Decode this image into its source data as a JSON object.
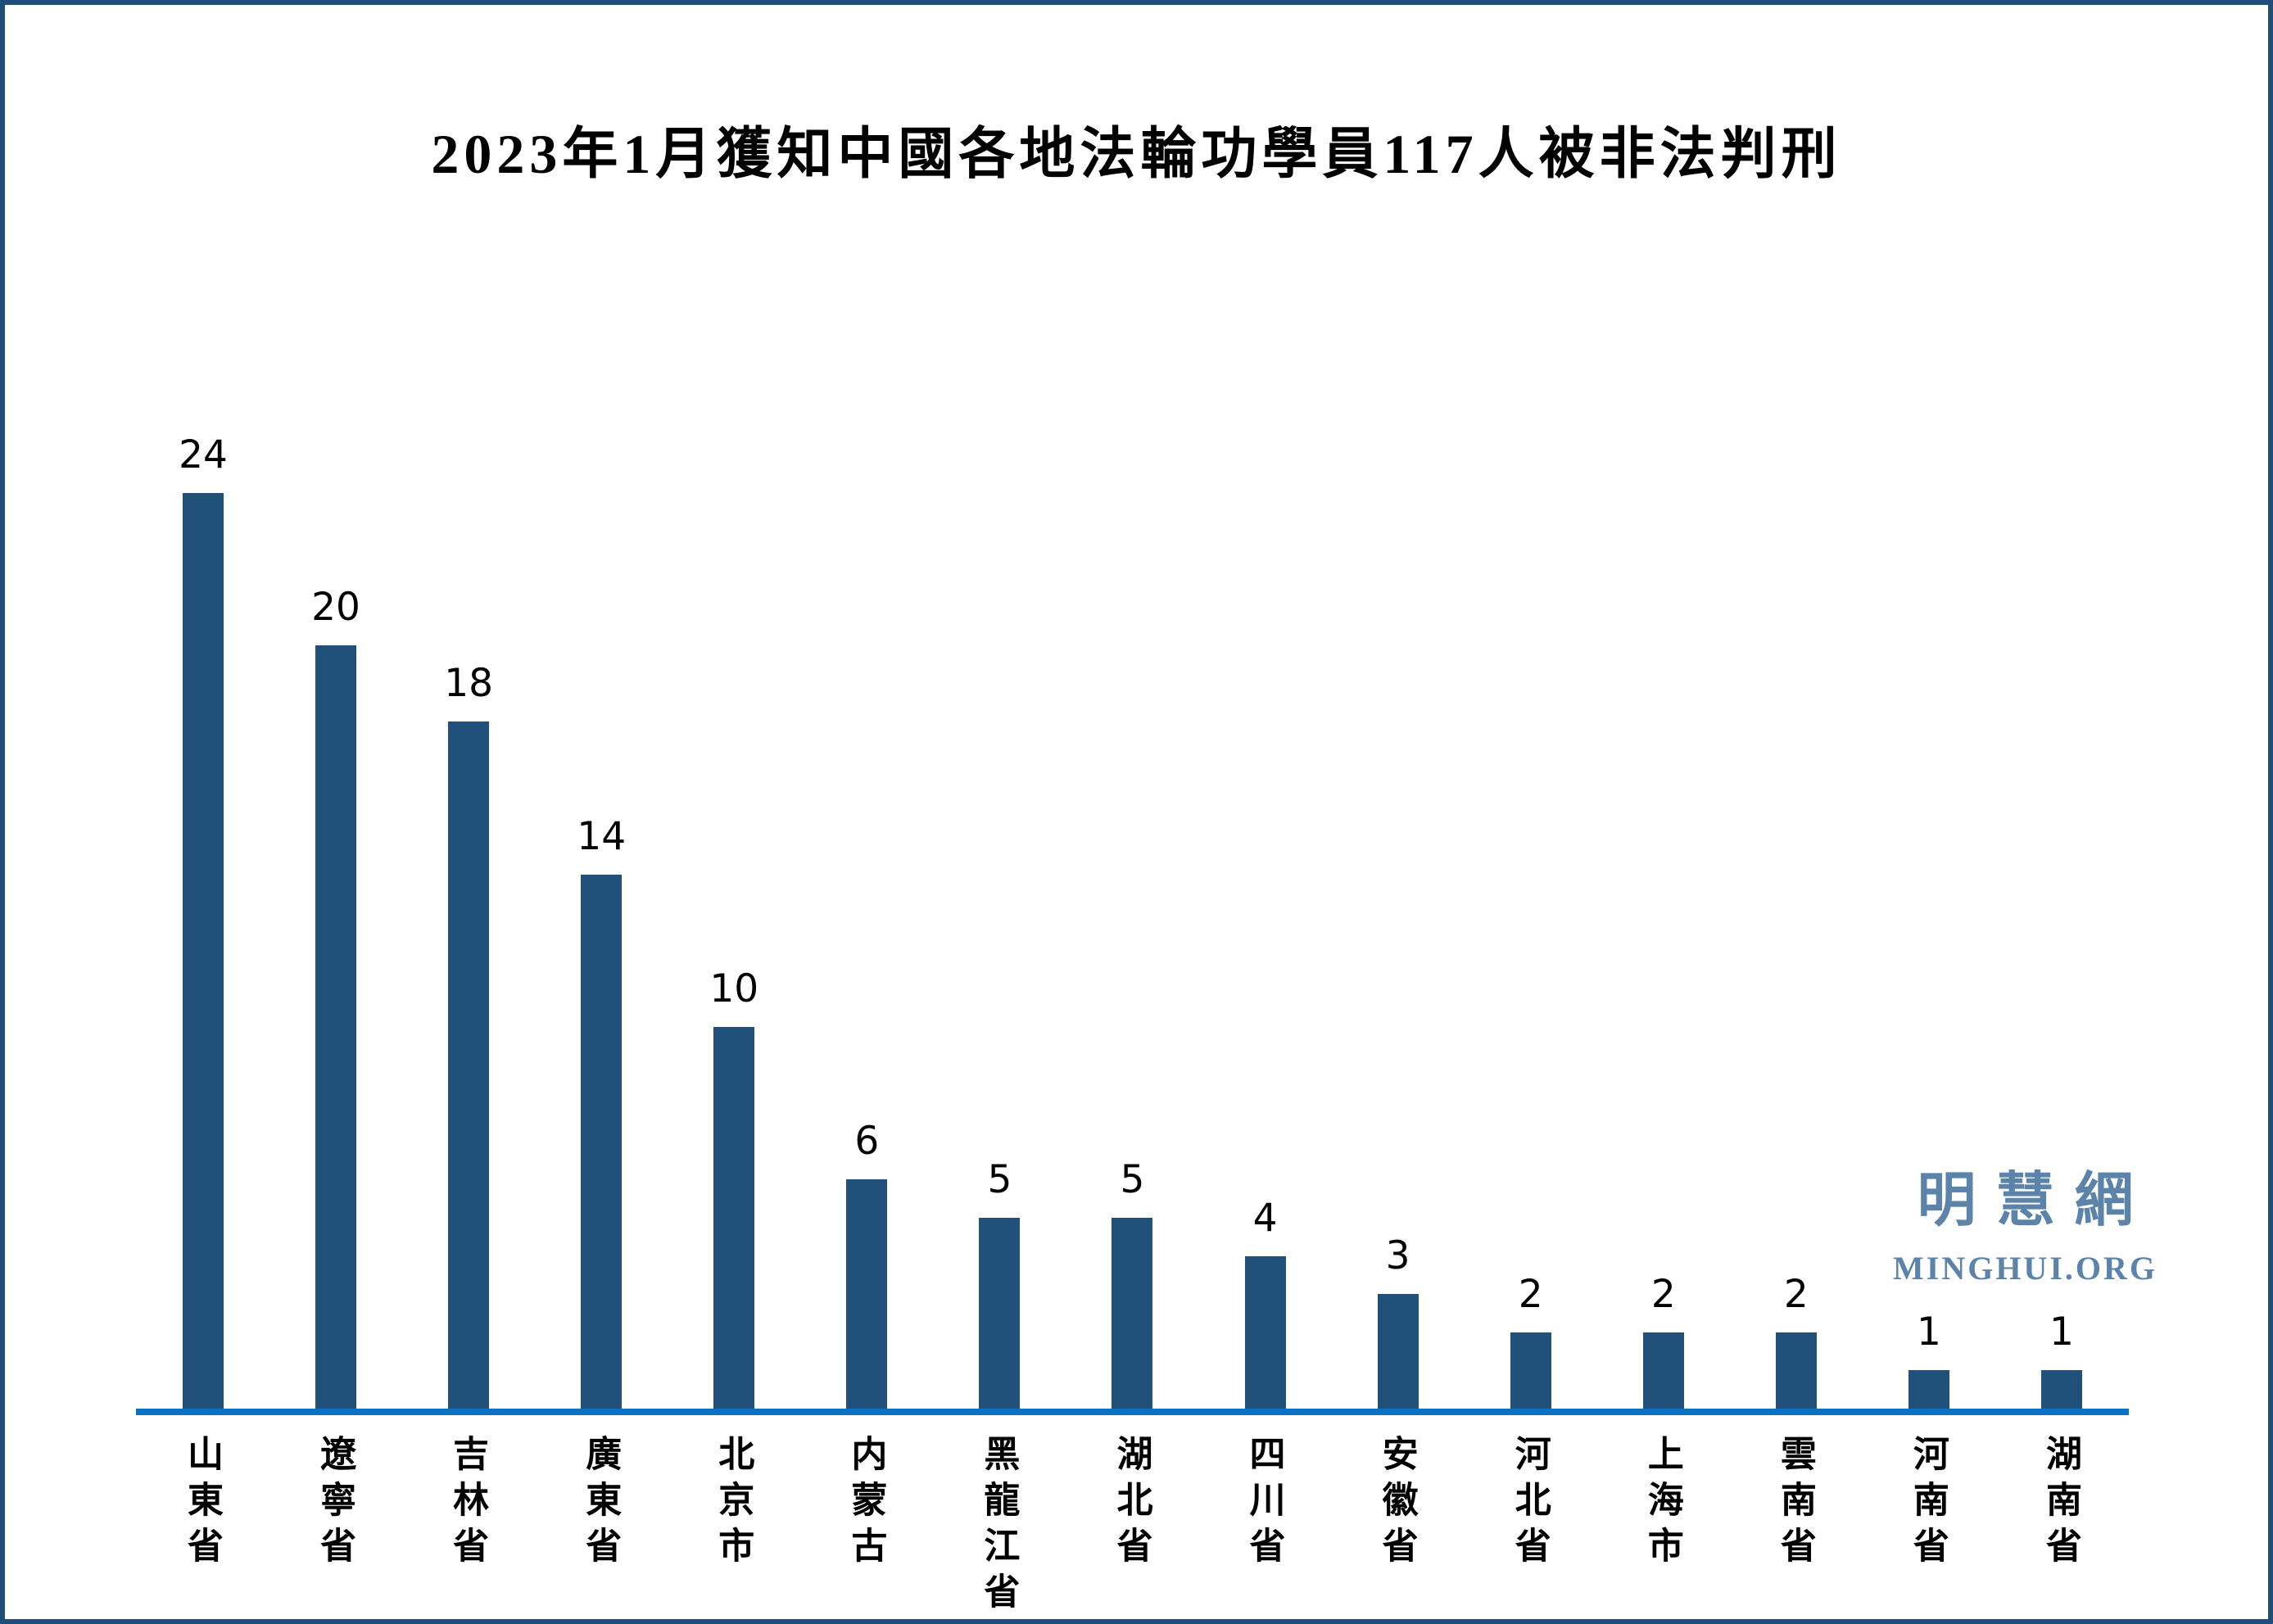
{
  "title": "2023年1月獲知中國各地法輪功學員117人被非法判刑",
  "chart_data": {
    "type": "bar",
    "title": "2023年1月獲知中國各地法輪功學員117人被非法判刑",
    "categories": [
      "山東省",
      "遼寧省",
      "吉林省",
      "廣東省",
      "北京市",
      "内蒙古",
      "黑龍江省",
      "湖北省",
      "四川省",
      "安徽省",
      "河北省",
      "上海市",
      "雲南省",
      "河南省",
      "湖南省"
    ],
    "values": [
      24,
      20,
      18,
      14,
      10,
      6,
      5,
      5,
      4,
      3,
      2,
      2,
      2,
      1,
      1
    ],
    "xlabel": "",
    "ylabel": "",
    "ylim": [
      0,
      26
    ],
    "grid": false,
    "y_axis_visible": false,
    "x_tick_orientation": "vertical-upright",
    "value_labels_position": "above-bars",
    "legend_position": "none",
    "bar_color": "#21517A",
    "axis_line_color": "#0C71C3"
  },
  "watermark": {
    "cjk": "明慧網",
    "latin": "MINGHUI.ORG",
    "color": "#5C83A9"
  },
  "frame": {
    "border_color": "#1F4E79",
    "background_color": "#FFFFFF"
  }
}
